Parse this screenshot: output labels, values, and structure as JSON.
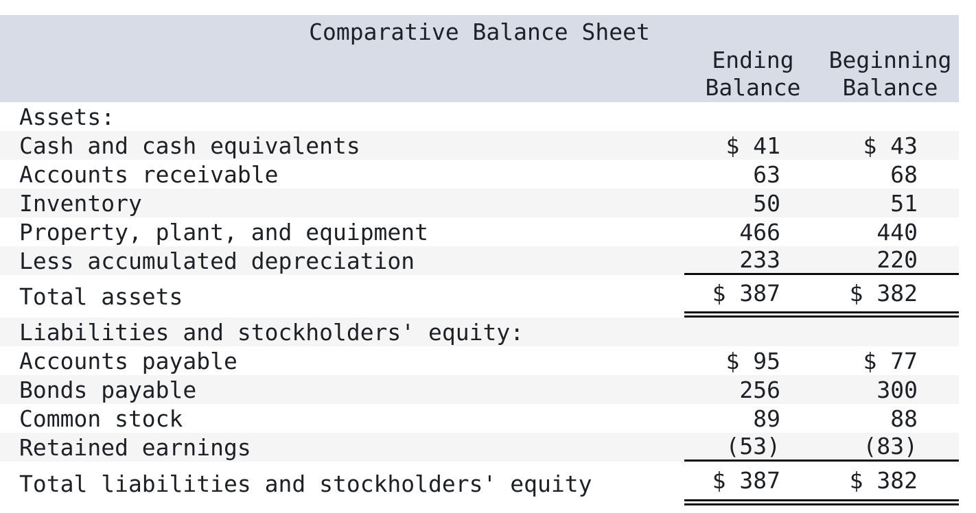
{
  "document": {
    "title": "Comparative Balance Sheet",
    "columns": [
      {
        "line1": "Ending",
        "line2": "Balance"
      },
      {
        "line1": "Beginning",
        "line2": "Balance"
      }
    ],
    "rows": [
      {
        "label": "Assets:"
      },
      {
        "label": "Cash and cash equivalents",
        "ending": "$ 41",
        "beginning": "$ 43"
      },
      {
        "label": "Accounts receivable",
        "ending": "63",
        "beginning": "68"
      },
      {
        "label": "Inventory",
        "ending": "50",
        "beginning": "51"
      },
      {
        "label": "Property, plant, and equipment",
        "ending": "466",
        "beginning": "440"
      },
      {
        "label": "Less accumulated depreciation",
        "ending": "233",
        "beginning": "220"
      },
      {
        "label": "Total assets",
        "ending": "$ 387",
        "beginning": "$ 382"
      },
      {
        "label": "Liabilities and stockholders' equity:"
      },
      {
        "label": "Accounts payable",
        "ending": "$ 95",
        "beginning": "$ 77"
      },
      {
        "label": "Bonds payable",
        "ending": "256",
        "beginning": "300"
      },
      {
        "label": "Common stock",
        "ending": "89",
        "beginning": "88"
      },
      {
        "label": "Retained earnings",
        "ending": "(53)",
        "beginning": "(83)"
      },
      {
        "label": "Total liabilities and stockholders' equity",
        "ending": "$ 387",
        "beginning": "$ 382"
      }
    ],
    "colors": {
      "header_bg": "#d8dce6",
      "stripe_bg": "#f5f5f5",
      "text": "#1d2025",
      "rule": "#0b0c0e"
    }
  }
}
